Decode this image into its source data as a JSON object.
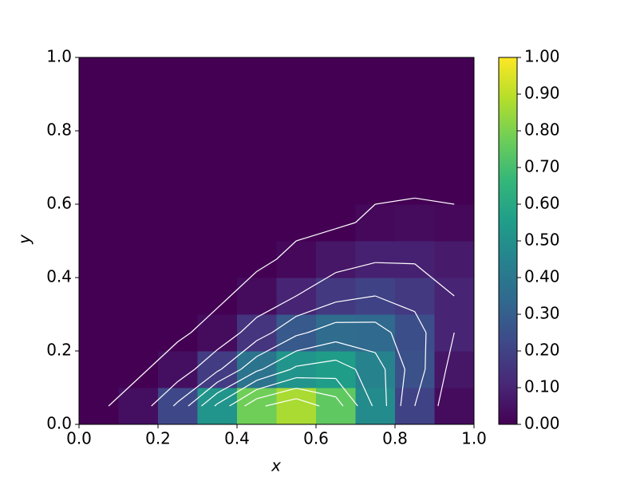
{
  "chart_data": {
    "type": "contour",
    "xlabel": "x",
    "ylabel": "y",
    "x": [
      0.05,
      0.15,
      0.25,
      0.35,
      0.45,
      0.55,
      0.65,
      0.75,
      0.85,
      0.95
    ],
    "y": [
      0.05,
      0.15,
      0.25,
      0.35,
      0.45,
      0.55,
      0.65,
      0.75,
      0.85,
      0.95
    ],
    "z": [
      [
        0,
        0.04,
        0.22,
        0.52,
        0.78,
        0.87,
        0.75,
        0.48,
        0.2,
        0.03
      ],
      [
        0,
        0,
        0.04,
        0.18,
        0.38,
        0.52,
        0.55,
        0.45,
        0.25,
        0.06
      ],
      [
        0,
        0,
        0,
        0.03,
        0.15,
        0.28,
        0.35,
        0.34,
        0.24,
        0.1
      ],
      [
        0,
        0,
        0,
        0,
        0.03,
        0.1,
        0.17,
        0.2,
        0.17,
        0.1
      ],
      [
        0,
        0,
        0,
        0,
        0,
        0.02,
        0.06,
        0.09,
        0.09,
        0.07
      ],
      [
        0,
        0,
        0,
        0,
        0,
        0,
        0,
        0.02,
        0.03,
        0.02
      ],
      [
        0,
        0,
        0,
        0,
        0,
        0,
        0,
        0,
        0,
        0
      ],
      [
        0,
        0,
        0,
        0,
        0,
        0,
        0,
        0,
        0,
        0
      ],
      [
        0,
        0,
        0,
        0,
        0,
        0,
        0,
        0,
        0,
        0
      ],
      [
        0,
        0,
        0,
        0,
        0,
        0,
        0,
        0,
        0,
        0
      ]
    ],
    "levels": [
      0.01,
      0.1,
      0.2,
      0.3,
      0.4,
      0.5,
      0.6,
      0.7,
      0.8
    ],
    "colormap": "viridis",
    "xlim": [
      0,
      1
    ],
    "ylim": [
      0,
      1
    ],
    "clim": [
      0,
      1
    ],
    "xticks": [
      {
        "value": 0,
        "label": "0.0"
      },
      {
        "value": 0.2,
        "label": "0.2"
      },
      {
        "value": 0.4,
        "label": "0.4"
      },
      {
        "value": 0.6,
        "label": "0.6"
      },
      {
        "value": 0.8,
        "label": "0.8"
      },
      {
        "value": 1,
        "label": "1.0"
      }
    ],
    "yticks": [
      {
        "value": 0,
        "label": "0.0"
      },
      {
        "value": 0.2,
        "label": "0.2"
      },
      {
        "value": 0.4,
        "label": "0.4"
      },
      {
        "value": 0.6,
        "label": "0.6"
      },
      {
        "value": 0.8,
        "label": "0.8"
      },
      {
        "value": 1,
        "label": "1.0"
      }
    ],
    "cticks": [
      {
        "value": 0,
        "label": "0.00"
      },
      {
        "value": 0.1,
        "label": "0.10"
      },
      {
        "value": 0.2,
        "label": "0.20"
      },
      {
        "value": 0.3,
        "label": "0.30"
      },
      {
        "value": 0.4,
        "label": "0.40"
      },
      {
        "value": 0.5,
        "label": "0.50"
      },
      {
        "value": 0.6,
        "label": "0.60"
      },
      {
        "value": 0.7,
        "label": "0.70"
      },
      {
        "value": 0.8,
        "label": "0.80"
      },
      {
        "value": 0.9,
        "label": "0.90"
      },
      {
        "value": 1,
        "label": "1.00"
      }
    ]
  }
}
